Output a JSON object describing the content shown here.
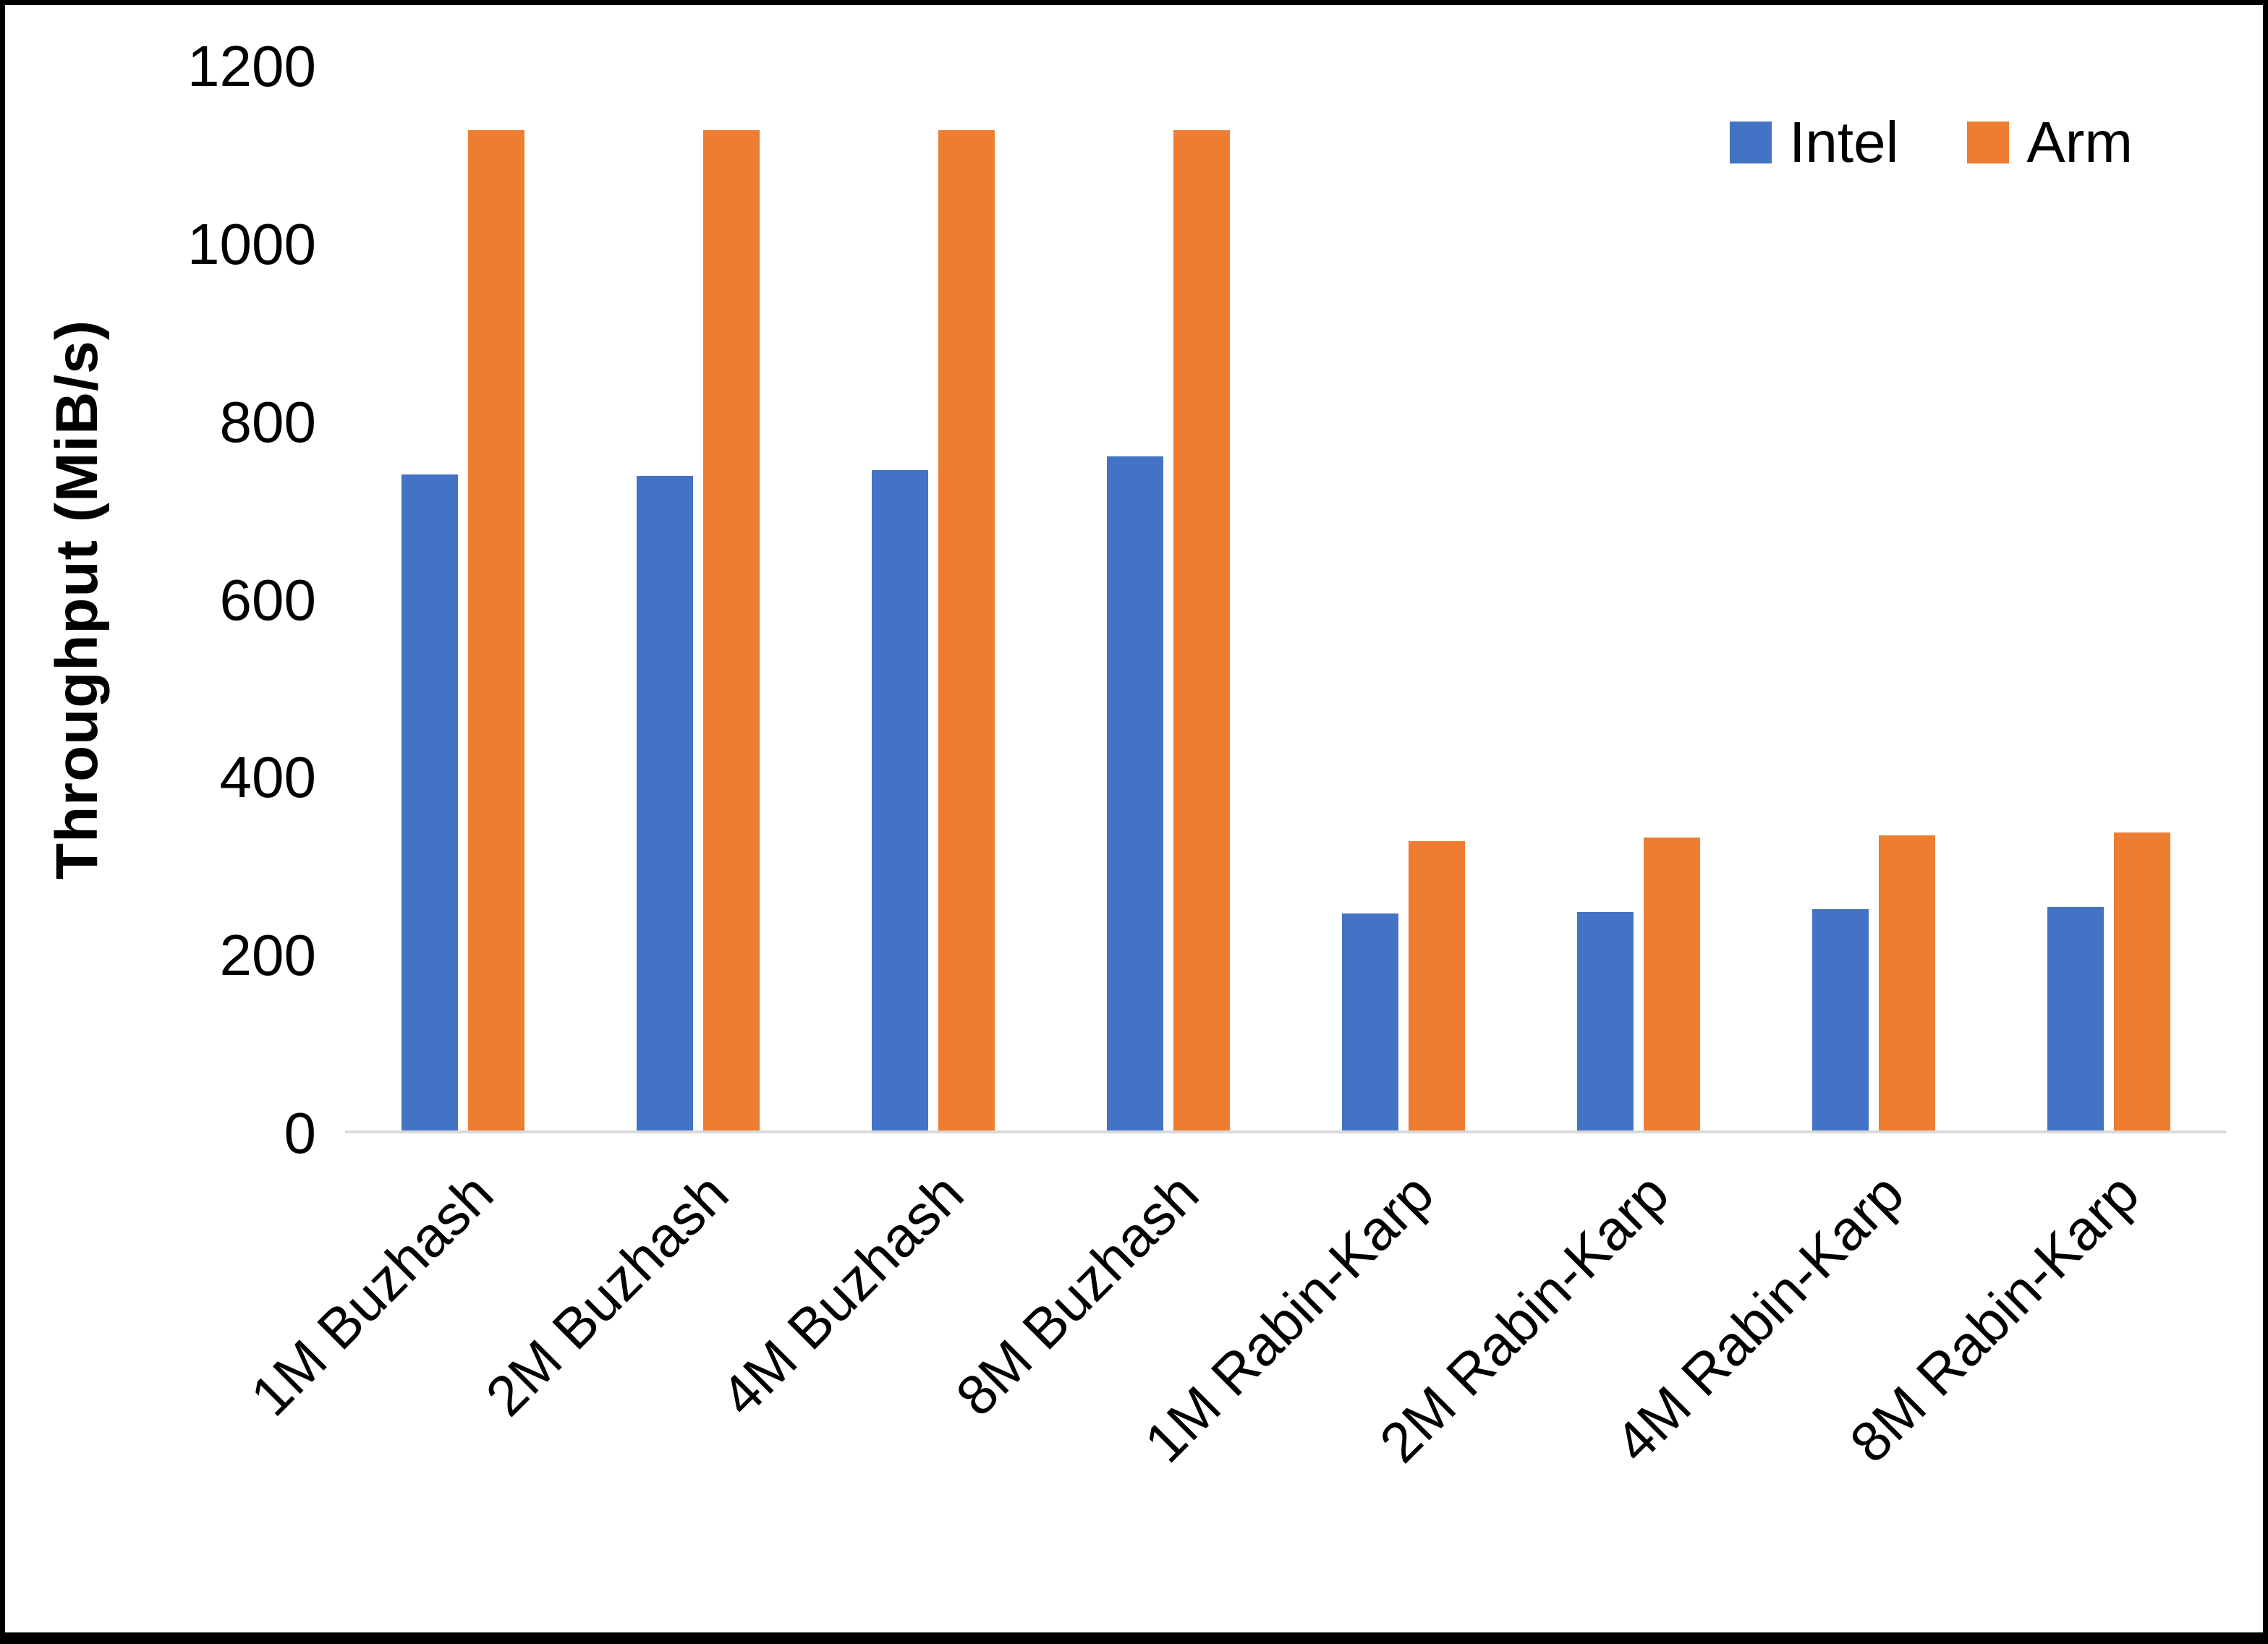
{
  "page": {
    "background": "#ffffff",
    "border_color": "#000000",
    "text_color": "#000000",
    "axis_line_color": "#d9d9d9"
  },
  "chart_data": {
    "type": "bar",
    "title": "",
    "xlabel": "",
    "ylabel": "Throughput (MiB/s)",
    "ylim": [
      0,
      1200
    ],
    "yticks": [
      0,
      200,
      400,
      600,
      800,
      1000,
      1200
    ],
    "grid": false,
    "legend_position": "top-right",
    "categories": [
      "1M Buzhash",
      "2M Buzhash",
      "4M Buzhash",
      "8M Buzhash",
      "1M Rabin-Karp",
      "2M Rabin-Karp",
      "4M Rabin-Karp",
      "8M Rabin-Karp"
    ],
    "series": [
      {
        "name": "Intel",
        "color": "#4472C4",
        "values": [
          740,
          738,
          745,
          760,
          245,
          246,
          250,
          252
        ]
      },
      {
        "name": "Arm",
        "color": "#ED7D31",
        "values": [
          1128,
          1128,
          1128,
          1128,
          326,
          330,
          333,
          336
        ]
      }
    ]
  }
}
